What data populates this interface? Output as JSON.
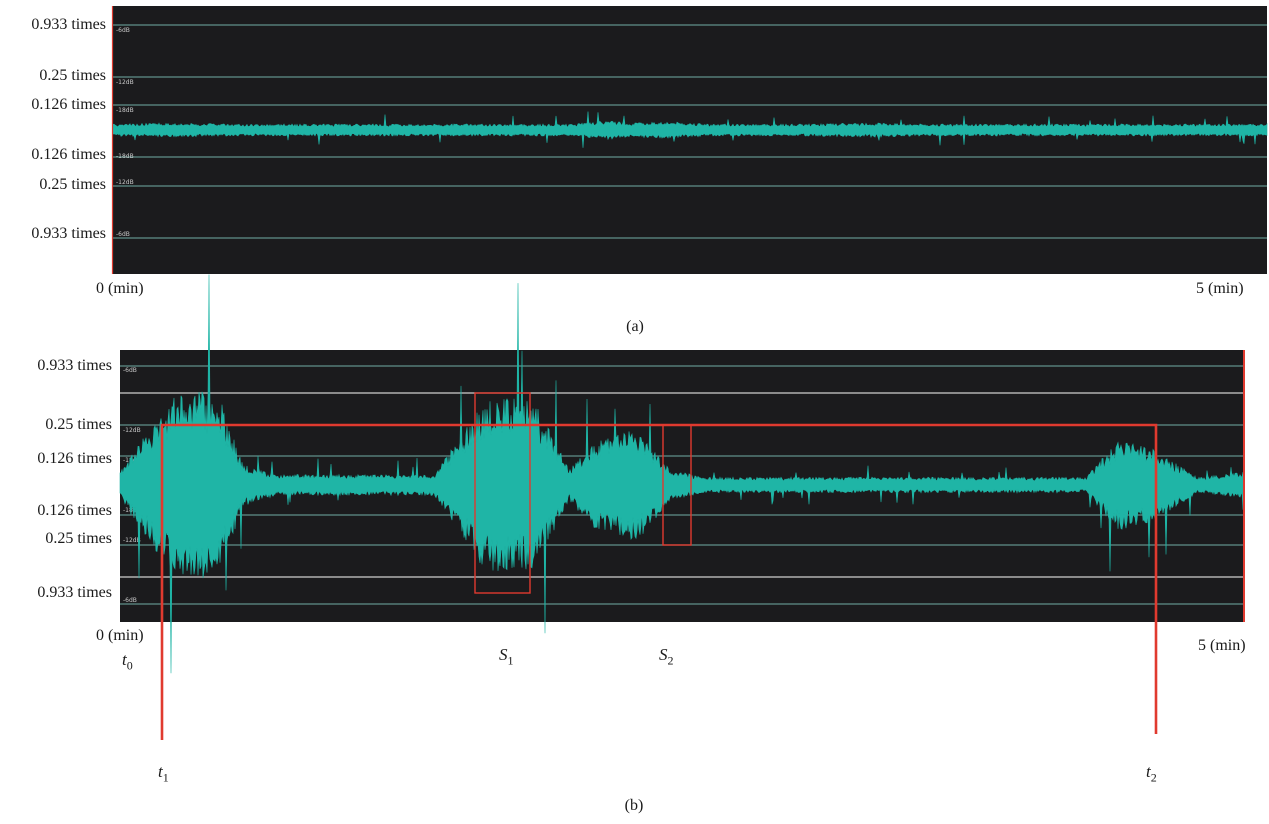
{
  "panel_a": {
    "caption": "(a)",
    "y_ticks_left": [
      "0.933 times",
      "0.25 times",
      "0.126 times",
      "0.126 times",
      "0.25 times",
      "0.933 times"
    ],
    "db_marks": [
      "-6dB",
      "-12dB",
      "-18dB",
      "-18dB",
      "-12dB",
      "-6dB"
    ],
    "x_start": "0 (min)",
    "x_end": "5 (min)"
  },
  "panel_b": {
    "caption": "(b)",
    "y_ticks_left": [
      "0.933 times",
      "0.25 times",
      "0.126 times",
      "0.126 times",
      "0.25 times",
      "0.933 times"
    ],
    "db_marks": [
      "-6dB",
      "-12dB",
      "-18dB",
      "-18dB",
      "-12dB",
      "-6dB"
    ],
    "x_start": "0 (min)",
    "x_end": "5 (min)",
    "markers": {
      "t0": {
        "base": "t",
        "sub": "0"
      },
      "t1": {
        "base": "t",
        "sub": "1"
      },
      "t2": {
        "base": "t",
        "sub": "2"
      },
      "s1": {
        "base": "S",
        "sub": "1"
      },
      "s2": {
        "base": "S",
        "sub": "2"
      }
    }
  },
  "colors": {
    "background": "#1b1b1d",
    "waveform": "#1fb5a6",
    "gridline": "#5f8f8a",
    "annotation": "#e03a2f"
  },
  "chart_data": [
    {
      "type": "area",
      "title": "",
      "x_range_min": [
        0,
        5
      ],
      "y_scale": "amplitude (times)",
      "y_ticks": [
        0.933,
        0.25,
        0.126,
        -0.126,
        -0.25,
        -0.933
      ],
      "db_ticks": [
        -6,
        -12,
        -18,
        -18,
        -12,
        -6
      ],
      "grid": true,
      "envelope": {
        "x": [
          0,
          0.25,
          0.5,
          1.0,
          1.5,
          2.0,
          2.15,
          2.25,
          2.4,
          2.6,
          3.0,
          3.3,
          3.5,
          4.0,
          4.5,
          5.0
        ],
        "amp": [
          0.05,
          0.06,
          0.05,
          0.05,
          0.05,
          0.05,
          0.08,
          0.06,
          0.07,
          0.05,
          0.05,
          0.06,
          0.05,
          0.05,
          0.05,
          0.05
        ]
      }
    },
    {
      "type": "area",
      "title": "",
      "x_range_min": [
        0,
        5
      ],
      "y_scale": "amplitude (times)",
      "y_ticks": [
        0.933,
        0.25,
        0.126,
        -0.126,
        -0.25,
        -0.933
      ],
      "db_ticks": [
        -6,
        -12,
        -18,
        -18,
        -12,
        -6
      ],
      "grid": true,
      "envelope": {
        "x": [
          0,
          0.15,
          0.3,
          0.45,
          0.55,
          0.7,
          1.0,
          1.4,
          1.6,
          1.7,
          1.85,
          2.0,
          2.1,
          2.3,
          2.45,
          2.6,
          3.0,
          3.5,
          4.0,
          4.3,
          4.45,
          4.6,
          4.8,
          5.0
        ],
        "amp": [
          0.05,
          0.25,
          0.4,
          0.32,
          0.08,
          0.04,
          0.04,
          0.04,
          0.3,
          0.36,
          0.32,
          0.06,
          0.16,
          0.22,
          0.06,
          0.03,
          0.03,
          0.03,
          0.03,
          0.03,
          0.18,
          0.14,
          0.03,
          0.05
        ]
      },
      "regions": [
        {
          "label": "S1",
          "x_start": 1.6,
          "x_end": 1.85
        },
        {
          "label": "S2",
          "x_start": 2.42,
          "x_end": 2.55
        }
      ],
      "interval": {
        "from": "t1",
        "to": "t2",
        "x_start": 0.19,
        "x_end": 4.7
      }
    }
  ]
}
